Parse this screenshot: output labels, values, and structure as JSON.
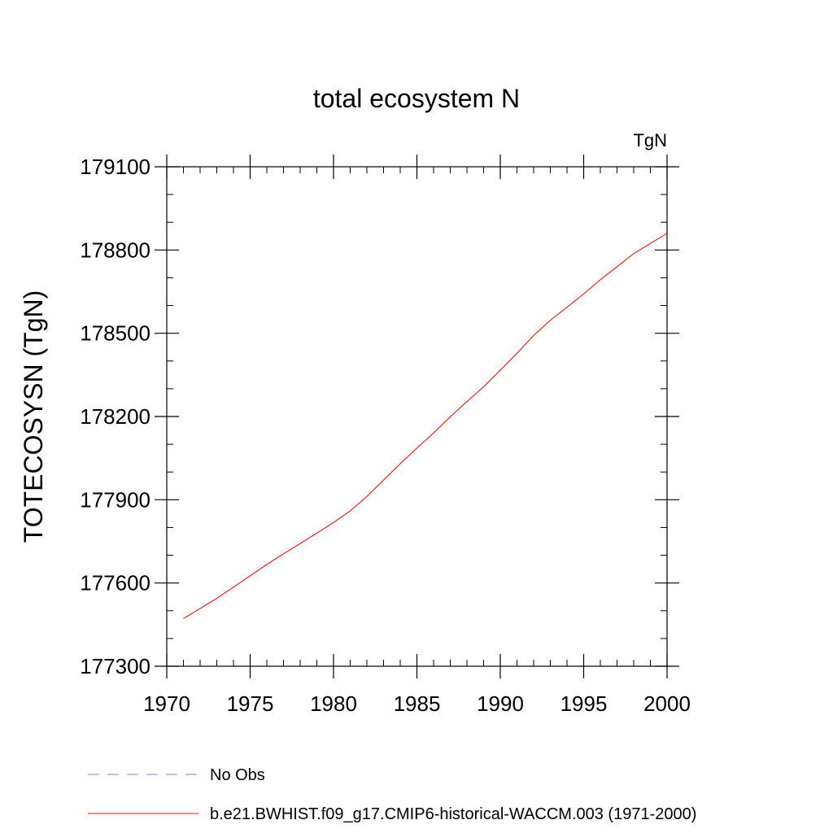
{
  "chart_data": {
    "type": "line",
    "title": "total ecosystem N",
    "units_label": "TgN",
    "ylabel": "TOTECOSYSN  (TgN)",
    "xlabel": "",
    "xlim": [
      1970,
      2000
    ],
    "ylim": [
      177300,
      179100
    ],
    "x_ticks": [
      1970,
      1975,
      1980,
      1985,
      1990,
      1995,
      2000
    ],
    "y_ticks": [
      177300,
      177600,
      177900,
      178200,
      178500,
      178800,
      179100
    ],
    "x_minor_step": 1,
    "y_minor_step": 100,
    "grid": false,
    "legend_position": "bottom",
    "series": [
      {
        "name": "b.e21.BWHIST.f09_g17.CMIP6-historical-WACCM.003 (1971-2000)",
        "color": "#ff0000",
        "line_style": "solid",
        "x": [
          1971,
          1972,
          1973,
          1974,
          1975,
          1976,
          1977,
          1978,
          1979,
          1980,
          1981,
          1982,
          1983,
          1984,
          1985,
          1986,
          1987,
          1988,
          1989,
          1990,
          1991,
          1992,
          1993,
          1994,
          1995,
          1996,
          1997,
          1998,
          1999,
          2000
        ],
        "y": [
          177472,
          177508,
          177545,
          177585,
          177626,
          177667,
          177705,
          177742,
          177780,
          177818,
          177860,
          177912,
          177971,
          178030,
          178086,
          178141,
          178199,
          178254,
          178307,
          178367,
          178428,
          178492,
          178547,
          178594,
          178642,
          178693,
          178740,
          178787,
          178824,
          178860
        ]
      }
    ],
    "legend": [
      {
        "label": "No Obs",
        "color": "#8080c0",
        "line_style": "dashed"
      },
      {
        "label": "b.e21.BWHIST.f09_g17.CMIP6-historical-WACCM.003 (1971-2000)",
        "color": "#ff0000",
        "line_style": "solid"
      }
    ]
  }
}
